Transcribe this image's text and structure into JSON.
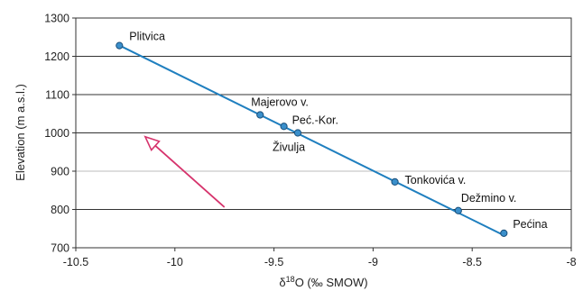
{
  "chart_data": {
    "type": "scatter",
    "title": "",
    "xlabel": {
      "delta": "δ",
      "superscript": "18",
      "rest": "O (‰ SMOW)"
    },
    "ylabel": "Elevation (m a.s.l.)",
    "xlim": [
      -10.5,
      -8
    ],
    "ylim": [
      700,
      1300
    ],
    "x_ticks": [
      -10.5,
      -10,
      -9.5,
      -9,
      -8.5,
      -8
    ],
    "x_tick_labels": [
      "-10.5",
      "-10",
      "-9.5",
      "-9",
      "-8.5",
      "-8"
    ],
    "y_ticks": [
      700,
      800,
      900,
      1000,
      1100,
      1200,
      1300
    ],
    "y_tick_labels": [
      "700",
      "800",
      "900",
      "1000",
      "1100",
      "1200",
      "1300"
    ],
    "grid": "horizontal",
    "light_gridlines": [
      900
    ],
    "series": [
      {
        "points": [
          {
            "label": "Plitvica",
            "x": -10.28,
            "y": 1228
          },
          {
            "label": "Majerovo v.",
            "x": -9.57,
            "y": 1047
          },
          {
            "label": "Peć.-Kor.",
            "x": -9.45,
            "y": 1017
          },
          {
            "label": "Živulja",
            "x": -9.38,
            "y": 1000
          },
          {
            "label": "Tonkovića v.",
            "x": -8.89,
            "y": 872
          },
          {
            "label": "Dežmino v.",
            "x": -8.57,
            "y": 797
          },
          {
            "label": "Pećina",
            "x": -8.34,
            "y": 738
          }
        ],
        "color": "#1f7fbf",
        "marker_fill": "#3a8fcb",
        "marker_stroke": "#1a4f7a"
      }
    ],
    "trend_line": {
      "from": {
        "x": -10.29,
        "y": 1231
      },
      "to": {
        "x": -8.35,
        "y": 735
      },
      "color": "#1f7fbf"
    },
    "arrow": {
      "from": {
        "x": -9.75,
        "y": 806
      },
      "to": {
        "x": -10.15,
        "y": 990
      },
      "color": "#d6336c"
    }
  }
}
